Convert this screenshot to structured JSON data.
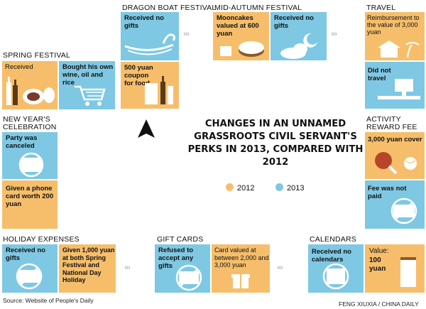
{
  "center": {
    "title": "CHANGES IN AN UNNAMED GRASSROOTS CIVIL SERVANT'S PERKS IN 2013, COMPARED WITH 2012",
    "legend_2012": "2012",
    "legend_2013": "2013"
  },
  "colors": {
    "y2012": "#f6be6b",
    "y2013": "#7ec8e3",
    "arrow": "#bbbbbb"
  },
  "sections": {
    "spring_festival": {
      "title": "SPRING FESTIVAL",
      "p2012": "Received",
      "p2013": "Bought his own wine, oil and rice"
    },
    "dragon_boat": {
      "title": "DRAGON BOAT FESTIVAL",
      "p2013": "Received no gifts",
      "p2012": "500 yuan coupon for food"
    },
    "mid_autumn": {
      "title": "MID-AUTUMN FESTIVAL",
      "p2012": "Mooncakes valued at 600 yuan",
      "p2013": "Received no gifts"
    },
    "travel": {
      "title": "TRAVEL",
      "p2012": "Reimbursement to the value of 3,000 yuan",
      "p2013": "Did not travel"
    },
    "new_year": {
      "title_line1": "NEW YEAR'S",
      "title_line2": "CELEBRATION",
      "p2013": "Party was canceled",
      "p2012": "Given a phone card worth 200 yuan"
    },
    "activity": {
      "title_line1": "ACTIVITY",
      "title_line2": "REWARD FEE",
      "p2012": "3,000 yuan cover",
      "p2013": "Fee was not paid"
    },
    "holiday": {
      "title": "HOLIDAY EXPENSES",
      "p2013": "Received no gifts",
      "p2012": "Given 1,000 yuan at both Spring Festival and National Day Holiday"
    },
    "gift_cards": {
      "title": "GIFT CARDS",
      "p2013": "Refused to accept any gifts",
      "p2012": "Card valued at between 2,000 and 3,000 yuan"
    },
    "calendars": {
      "title": "CALENDARS",
      "p2013": "Received no calendars",
      "p2012_label": "Value:",
      "p2012_value": "100 yuan"
    }
  },
  "arrows": {
    "glyph": "›››",
    "glyph_left": "‹‹‹"
  },
  "footer": {
    "source": "Source: Website of People's Daily",
    "credit": "FENG XIUXIA / CHINA DAILY"
  }
}
